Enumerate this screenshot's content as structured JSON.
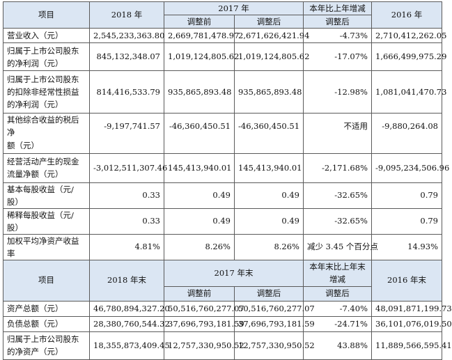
{
  "table1": {
    "header": {
      "item": "项目",
      "y2018": "2018 年",
      "y2017": "2017 年",
      "change": "本年比上年增减",
      "y2016": "2016 年",
      "before_adj": "调整前",
      "after_adj": "调整后",
      "change_sub": "调整后"
    },
    "rows": [
      {
        "label": "营业收入（元）",
        "v2018": "2,545,233,363.80",
        "before": "2,669,781,478.97",
        "after": "2,671,626,421.94",
        "change": "-4.73%",
        "v2016": "2,710,412,262.05"
      },
      {
        "label": "归属于上市公司股东的净利润（元）",
        "v2018": "845,132,348.07",
        "before": "1,019,124,805.62",
        "after": "1,019,124,805.62",
        "change": "-17.07%",
        "v2016": "1,666,499,975.29"
      },
      {
        "label": "归属于上市公司股东的扣除非经常性损益的净利润（元）",
        "v2018": "814,416,533.79",
        "before": "935,865,893.48",
        "after": "935,865,893.48",
        "change": "-12.98%",
        "v2016": "1,081,041,470.73"
      },
      {
        "label_line1": "其他综合收益的税后净",
        "label_line2": "额（元）",
        "v2018": "-9,197,741.57",
        "before": "-46,360,450.51",
        "after": "-46,360,450.51",
        "change": "不适用",
        "v2016": "-9,880,264.08"
      },
      {
        "label": "经营活动产生的现金流量净额（元）",
        "v2018": "-3,012,511,307.46",
        "before": "145,413,940.01",
        "after": "145,413,940.01",
        "change": "-2,171.68%",
        "v2016": "-9,095,234,506.96"
      },
      {
        "label": "基本每股收益（元/股）",
        "v2018": "0.33",
        "before": "0.49",
        "after": "0.49",
        "change": "-32.65%",
        "v2016": "0.79"
      },
      {
        "label": "稀释每股收益（元/股）",
        "v2018": "0.33",
        "before": "0.49",
        "after": "0.49",
        "change": "-32.65%",
        "v2016": "0.79"
      },
      {
        "label": "加权平均净资产收益率",
        "v2018": "4.81%",
        "before": "8.26%",
        "after": "8.26%",
        "change": "减少 3.45 个百分点",
        "v2016": "14.93%"
      }
    ]
  },
  "table2": {
    "header": {
      "item": "项目",
      "y2018": "2018 年末",
      "y2017": "2017 年末",
      "change": "本年末比上年末增减",
      "y2016": "2016 年末",
      "before_adj": "调整前",
      "after_adj": "调整后",
      "change_sub": "调整后"
    },
    "rows": [
      {
        "label": "资产总额（元）",
        "v2018": "46,780,894,327.20",
        "before": "50,516,760,277.07",
        "after": "50,516,760,277.07",
        "change": "-7.40%",
        "v2016": "48,091,871,199.73"
      },
      {
        "label": "负债总额（元）",
        "v2018": "28,380,760,544.32",
        "before": "37,696,793,181.59",
        "after": "37,696,793,181.59",
        "change": "-24.71%",
        "v2016": "36,101,076,019.50"
      },
      {
        "label": "归属于上市公司股东的净资产（元）",
        "v2018": "18,355,873,409.45",
        "before": "12,757,330,950.52",
        "after": "12,757,330,950.52",
        "change": "43.88%",
        "v2016": "11,889,566,595.41"
      }
    ]
  }
}
